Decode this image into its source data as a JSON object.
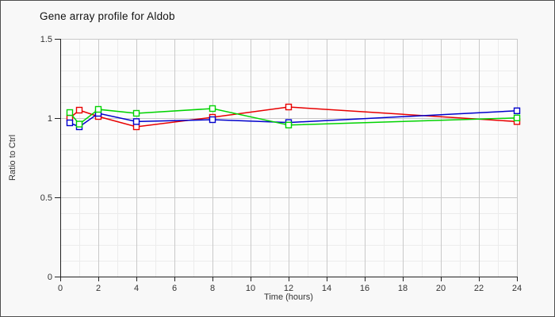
{
  "panel": {
    "title": "Gene array profile for Aldob"
  },
  "chart_data": {
    "type": "line",
    "title": "Gene array profile for Aldob",
    "xlabel": "Time (hours)",
    "ylabel": "Ratio to Ctrl",
    "x": [
      0.5,
      1,
      2,
      4,
      8,
      12,
      24
    ],
    "series": [
      {
        "name": "red",
        "color": "#e80000",
        "values": [
          1.0,
          1.05,
          1.01,
          0.945,
          1.005,
          1.07,
          0.978
        ]
      },
      {
        "name": "blue",
        "color": "#0000cc",
        "values": [
          0.97,
          0.945,
          1.03,
          0.978,
          0.99,
          0.972,
          1.046
        ]
      },
      {
        "name": "green",
        "color": "#00d300",
        "values": [
          1.035,
          0.962,
          1.055,
          1.03,
          1.06,
          0.956,
          1.001
        ]
      }
    ],
    "xlim": [
      0,
      24
    ],
    "ylim": [
      0,
      1.5
    ],
    "x_ticks": [
      [
        0,
        "0"
      ],
      [
        2,
        "2"
      ],
      [
        4,
        "4"
      ],
      [
        6,
        "6"
      ],
      [
        8,
        "8"
      ],
      [
        10,
        "10"
      ],
      [
        12,
        "12"
      ],
      [
        14,
        "14"
      ],
      [
        16,
        "16"
      ],
      [
        18,
        "18"
      ],
      [
        20,
        "20"
      ],
      [
        22,
        "22"
      ],
      [
        24,
        "24"
      ]
    ],
    "y_ticks": [
      [
        0,
        "0"
      ],
      [
        0.5,
        "0.5"
      ],
      [
        1,
        "1"
      ],
      [
        1.5,
        "1.5"
      ]
    ],
    "x_minor_step": 1,
    "y_minor_step": 0.1,
    "marker": "open-square",
    "grid": true,
    "legend": "none"
  },
  "colors": {
    "page_bg": "#f8f8f8",
    "plot_bg": "#fcfcfc",
    "grid_minor": "#ececec",
    "grid_major": "#c9c9c9",
    "axis": "#222222",
    "tick_text": "#333333",
    "frame_border": "#4f4f4f"
  }
}
